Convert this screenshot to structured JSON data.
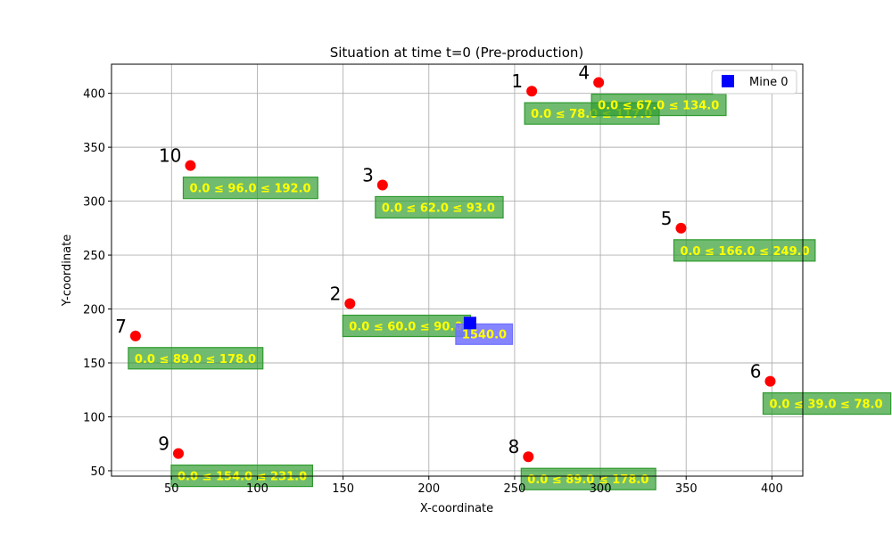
{
  "chart_data": {
    "type": "scatter",
    "title": "Situation at time t=0 (Pre-production)",
    "xlabel": "X-coordinate",
    "ylabel": "Y-coordinate",
    "xlim": [
      15,
      418
    ],
    "ylim": [
      45,
      427
    ],
    "xticks": [
      50,
      100,
      150,
      200,
      250,
      300,
      350,
      400
    ],
    "yticks": [
      50,
      100,
      150,
      200,
      250,
      300,
      350,
      400
    ],
    "grid": true,
    "legend": {
      "placement": "top-right",
      "entries": [
        {
          "label": "Mine 0",
          "color": "#0000ff",
          "marker": "square"
        }
      ]
    },
    "points": [
      {
        "id": "1",
        "x": 260,
        "y": 402,
        "label": "0.0 ≤ 78.0 ≤ 117.0",
        "bounds": [
          0.0,
          78.0,
          117.0
        ]
      },
      {
        "id": "2",
        "x": 154,
        "y": 205,
        "label": "0.0 ≤ 60.0 ≤ 90.0",
        "bounds": [
          0.0,
          60.0,
          90.0
        ]
      },
      {
        "id": "3",
        "x": 173,
        "y": 315,
        "label": "0.0 ≤ 62.0 ≤ 93.0",
        "bounds": [
          0.0,
          62.0,
          93.0
        ]
      },
      {
        "id": "4",
        "x": 299,
        "y": 410,
        "label": "0.0 ≤ 67.0 ≤ 134.0",
        "bounds": [
          0.0,
          67.0,
          134.0
        ]
      },
      {
        "id": "5",
        "x": 347,
        "y": 275,
        "label": "0.0 ≤ 166.0 ≤ 249.0",
        "bounds": [
          0.0,
          166.0,
          249.0
        ]
      },
      {
        "id": "6",
        "x": 399,
        "y": 133,
        "label": "0.0 ≤ 39.0 ≤ 78.0",
        "bounds": [
          0.0,
          39.0,
          78.0
        ]
      },
      {
        "id": "7",
        "x": 29,
        "y": 175,
        "label": "0.0 ≤ 89.0 ≤ 178.0",
        "bounds": [
          0.0,
          89.0,
          178.0
        ]
      },
      {
        "id": "8",
        "x": 258,
        "y": 63,
        "label": "0.0 ≤ 89.0 ≤ 178.0",
        "bounds": [
          0.0,
          89.0,
          178.0
        ]
      },
      {
        "id": "9",
        "x": 54,
        "y": 66,
        "label": "0.0 ≤ 154.0 ≤ 231.0",
        "bounds": [
          0.0,
          154.0,
          231.0
        ]
      },
      {
        "id": "10",
        "x": 61,
        "y": 333,
        "label": "0.0 ≤ 96.0 ≤ 192.0",
        "bounds": [
          0.0,
          96.0,
          192.0
        ]
      }
    ],
    "mines": [
      {
        "name": "Mine 0",
        "x": 224,
        "y": 187,
        "label": "1540.0",
        "value": 1540.0
      }
    ]
  },
  "colors": {
    "customer_point": "#ff0000",
    "mine_marker": "#0000ff",
    "customer_box": "#2e9b2e",
    "mine_box": "#7070ff",
    "box_text": "#ffff00",
    "grid": "#b0b0b0"
  }
}
